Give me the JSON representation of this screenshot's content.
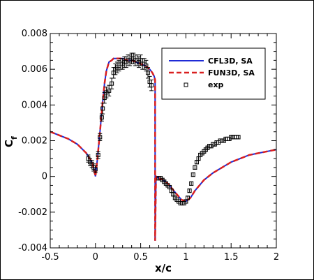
{
  "chart_data": {
    "type": "line",
    "xlabel": "x/c",
    "ylabel": "C",
    "ylabel_sub": "f",
    "xlim": [
      -0.5,
      2
    ],
    "ylim": [
      -0.004,
      0.008
    ],
    "xticks": [
      -0.5,
      0,
      0.5,
      1,
      1.5,
      2
    ],
    "xtick_labels": [
      "-0.5",
      "0",
      "0.5",
      "1",
      "1.5",
      "2"
    ],
    "yticks": [
      -0.004,
      -0.002,
      0,
      0.002,
      0.004,
      0.006,
      0.008
    ],
    "ytick_labels": [
      "-0.004",
      "-0.002",
      "0",
      "0.002",
      "0.004",
      "0.006",
      "0.008"
    ],
    "grid": false,
    "legend_position": "top-right",
    "series": [
      {
        "name": "CFL3D, SA",
        "style": "solid",
        "color": "#1f2bd6",
        "x": [
          -0.5,
          -0.4,
          -0.3,
          -0.2,
          -0.1,
          -0.05,
          -0.02,
          0.0,
          0.02,
          0.05,
          0.08,
          0.1,
          0.12,
          0.15,
          0.18,
          0.2,
          0.25,
          0.3,
          0.35,
          0.4,
          0.45,
          0.5,
          0.55,
          0.6,
          0.63,
          0.65,
          0.66,
          0.66,
          0.67,
          0.7,
          0.75,
          0.8,
          0.85,
          0.9,
          0.95,
          1.0,
          1.05,
          1.1,
          1.2,
          1.3,
          1.4,
          1.5,
          1.6,
          1.7,
          1.8,
          1.9,
          2.0
        ],
        "y": [
          0.0025,
          0.0023,
          0.0021,
          0.0018,
          0.0013,
          0.0009,
          0.0005,
          0.0,
          0.0009,
          0.0025,
          0.0042,
          0.0052,
          0.0059,
          0.0064,
          0.0065,
          0.0066,
          0.0066,
          0.0066,
          0.0065,
          0.0065,
          0.0064,
          0.0063,
          0.0062,
          0.006,
          0.0058,
          0.0056,
          0.0054,
          -0.0036,
          0.0,
          -0.0001,
          -0.0002,
          -0.0004,
          -0.0007,
          -0.001,
          -0.0013,
          -0.0014,
          -0.0012,
          -0.0008,
          -0.0002,
          0.0002,
          0.0005,
          0.0008,
          0.001,
          0.0012,
          0.0013,
          0.0014,
          0.0015
        ]
      },
      {
        "name": "FUN3D, SA",
        "style": "dashed",
        "color": "#d91f1f",
        "x": [
          -0.5,
          -0.4,
          -0.3,
          -0.2,
          -0.1,
          -0.05,
          -0.02,
          0.0,
          0.02,
          0.05,
          0.08,
          0.1,
          0.12,
          0.15,
          0.18,
          0.2,
          0.25,
          0.3,
          0.35,
          0.4,
          0.45,
          0.5,
          0.55,
          0.6,
          0.63,
          0.65,
          0.66,
          0.66,
          0.67,
          0.7,
          0.75,
          0.8,
          0.85,
          0.9,
          0.95,
          1.0,
          1.05,
          1.1,
          1.2,
          1.3,
          1.4,
          1.5,
          1.6,
          1.7,
          1.8,
          1.9,
          2.0
        ],
        "y": [
          0.0025,
          0.0023,
          0.0021,
          0.0018,
          0.0013,
          0.0009,
          0.0005,
          0.0,
          0.0009,
          0.0025,
          0.0042,
          0.0052,
          0.0059,
          0.0064,
          0.0065,
          0.0066,
          0.0066,
          0.0066,
          0.0065,
          0.0065,
          0.0064,
          0.0063,
          0.0062,
          0.006,
          0.0058,
          0.0056,
          0.0054,
          -0.0036,
          0.0,
          -0.0001,
          -0.0002,
          -0.0004,
          -0.0007,
          -0.001,
          -0.0013,
          -0.0014,
          -0.0012,
          -0.0008,
          -0.0002,
          0.0002,
          0.0005,
          0.0008,
          0.001,
          0.0012,
          0.0013,
          0.0014,
          0.0015
        ]
      },
      {
        "name": "exp",
        "style": "markers",
        "marker": "square",
        "color": "#000000",
        "x": [
          -0.08,
          -0.06,
          -0.04,
          -0.02,
          0.0,
          0.03,
          0.05,
          0.07,
          0.08,
          0.1,
          0.12,
          0.15,
          0.18,
          0.2,
          0.22,
          0.24,
          0.26,
          0.28,
          0.3,
          0.32,
          0.34,
          0.36,
          0.38,
          0.4,
          0.42,
          0.44,
          0.46,
          0.48,
          0.5,
          0.52,
          0.54,
          0.56,
          0.58,
          0.6,
          0.62,
          0.7,
          0.72,
          0.74,
          0.76,
          0.78,
          0.8,
          0.82,
          0.84,
          0.86,
          0.88,
          0.9,
          0.92,
          0.94,
          0.96,
          0.98,
          1.0,
          1.02,
          1.04,
          1.06,
          1.08,
          1.1,
          1.12,
          1.14,
          1.16,
          1.18,
          1.2,
          1.22,
          1.24,
          1.26,
          1.28,
          1.3,
          1.32,
          1.34,
          1.36,
          1.38,
          1.4,
          1.42,
          1.44,
          1.46,
          1.48,
          1.5,
          1.52,
          1.54,
          1.56,
          1.58
        ],
        "y": [
          0.001,
          0.0008,
          0.0007,
          0.0005,
          0.0004,
          0.0012,
          0.0022,
          0.0033,
          0.0038,
          0.0044,
          0.0047,
          0.0048,
          0.0052,
          0.0058,
          0.006,
          0.0061,
          0.0062,
          0.0063,
          0.0063,
          0.0064,
          0.0064,
          0.0065,
          0.0065,
          0.0066,
          0.0066,
          0.0065,
          0.0065,
          0.0064,
          0.0065,
          0.0063,
          0.0063,
          0.0062,
          0.0058,
          0.0053,
          0.0051,
          -0.0001,
          -0.0001,
          -0.0002,
          -0.0003,
          -0.0004,
          -0.0005,
          -0.0006,
          -0.0008,
          -0.001,
          -0.0012,
          -0.0013,
          -0.0014,
          -0.0015,
          -0.0015,
          -0.0015,
          -0.0014,
          -0.0012,
          -0.0008,
          -0.0004,
          0.0001,
          0.0005,
          0.0008,
          0.001,
          0.0012,
          0.0013,
          0.0014,
          0.0015,
          0.0016,
          0.0017,
          0.0017,
          0.0018,
          0.0018,
          0.0019,
          0.0019,
          0.002,
          0.002,
          0.002,
          0.0021,
          0.0021,
          0.0021,
          0.0022,
          0.0022,
          0.0022,
          0.0022,
          0.0022
        ],
        "err": [
          0.0002,
          0.0002,
          0.0002,
          0.0002,
          0.0002,
          0.0002,
          0.0002,
          0.0002,
          0.0003,
          0.0003,
          0.0003,
          0.0003,
          0.0003,
          0.0003,
          0.0003,
          0.0003,
          0.0003,
          0.0003,
          0.0003,
          0.0003,
          0.0003,
          0.0003,
          0.0003,
          0.0003,
          0.0003,
          0.0003,
          0.0003,
          0.0003,
          0.0003,
          0.0003,
          0.0003,
          0.0003,
          0.0003,
          0.0003,
          0.0003,
          0.0001,
          0.0001,
          0.0001,
          0.0001,
          0.0001,
          0.0001,
          0.0001,
          0.0001,
          0.0001,
          0.0001,
          0.0001,
          0.0001,
          0.0001,
          0.0001,
          0.0001,
          0.0001,
          0.0001,
          0.0001,
          0.0001,
          0.0001,
          0.0001,
          0.0001,
          0.0001,
          0.0001,
          0.0001,
          0.0001,
          0.0001,
          0.0001,
          0.0001,
          0.0001,
          0.0001,
          0.0001,
          0.0001,
          0.0001,
          0.0001,
          0.0001,
          0.0001,
          0.0001,
          0.0001,
          0.0001,
          0.0001,
          0.0001,
          0.0001,
          0.0001,
          0.0001
        ]
      }
    ]
  }
}
